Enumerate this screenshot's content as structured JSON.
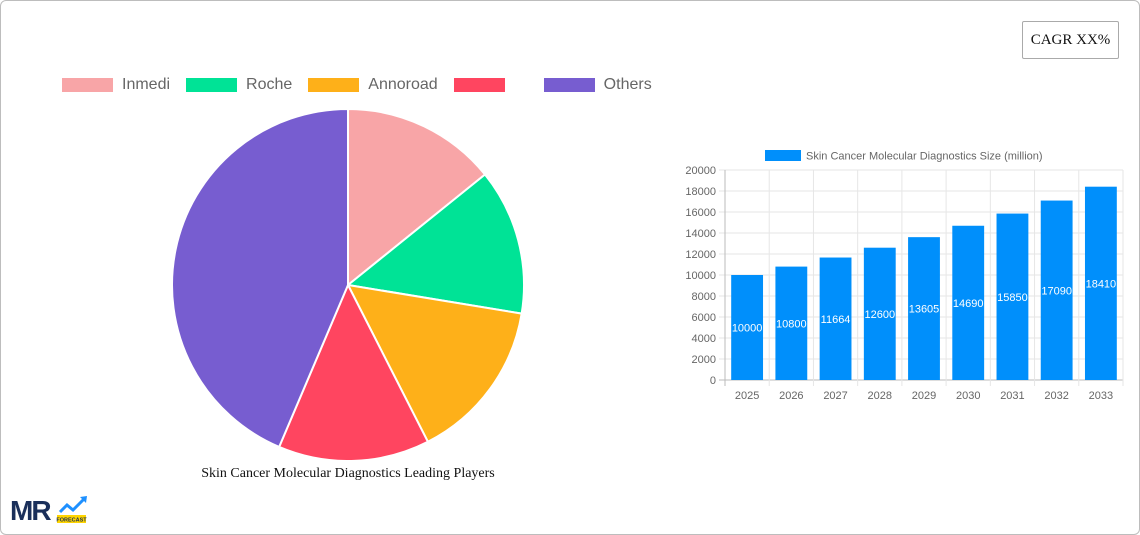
{
  "cagr_badge": {
    "label": "CAGR XX%"
  },
  "pie": {
    "title": "Skin Cancer Molecular Diagnostics Leading Players",
    "legend": [
      {
        "label": "Inmedi",
        "color": "#f8a5a7"
      },
      {
        "label": "Roche",
        "color": "#00e396"
      },
      {
        "label": "Annoroad",
        "color": "#feb019"
      },
      {
        "label": "",
        "color": "#ff4560"
      },
      {
        "label": "Others",
        "color": "#775dd0"
      }
    ]
  },
  "bar": {
    "legend_label": "Skin Cancer Molecular Diagnostics Size (million)",
    "bar_color": "#008ffb"
  },
  "logo": {
    "text": "MR",
    "subtext": "FORECAST"
  },
  "chart_data": [
    {
      "type": "pie",
      "title": "Skin Cancer Molecular Diagnostics Leading Players",
      "categories": [
        "Inmedi",
        "Roche",
        "Annoroad",
        "",
        "Others"
      ],
      "values": [
        14.2,
        13.4,
        14.9,
        13.9,
        43.6
      ],
      "unit": "% (estimated from slice angles)",
      "colors": [
        "#f8a5a7",
        "#00e396",
        "#feb019",
        "#ff4560",
        "#775dd0"
      ],
      "legend_position": "top"
    },
    {
      "type": "bar",
      "title": "",
      "legend": [
        "Skin Cancer Molecular Diagnostics Size (million)"
      ],
      "categories": [
        "2025",
        "2026",
        "2027",
        "2028",
        "2029",
        "2030",
        "2031",
        "2032",
        "2033"
      ],
      "values": [
        10000,
        10800,
        11664,
        12600,
        13605,
        14690,
        15850,
        17090,
        18410
      ],
      "xlabel": "",
      "ylabel": "",
      "ylim": [
        0,
        20000
      ],
      "yticks": [
        0,
        2000,
        4000,
        6000,
        8000,
        10000,
        12000,
        14000,
        16000,
        18000,
        20000
      ],
      "grid": true,
      "data_labels": true,
      "legend_position": "top"
    }
  ]
}
